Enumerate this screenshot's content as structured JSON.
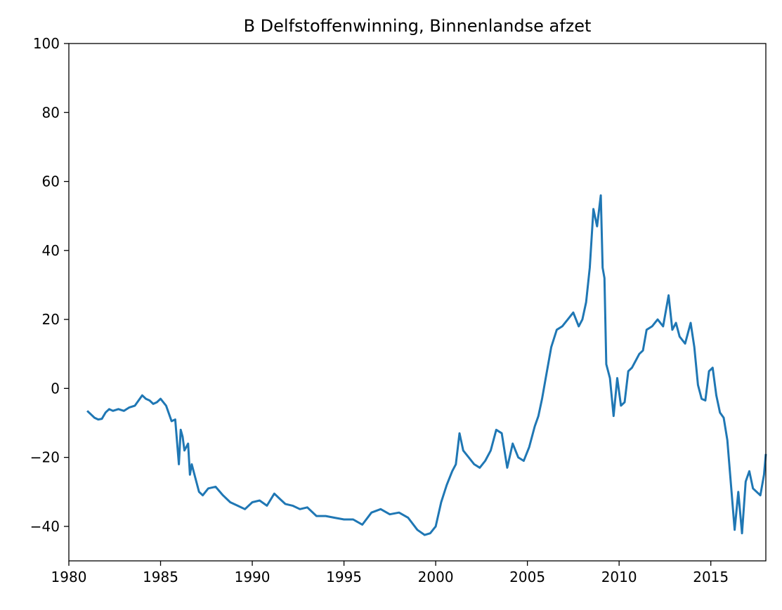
{
  "chart_data": {
    "type": "line",
    "title": "B Delfstoffenwinning, Binnenlandse afzet",
    "xlabel": "",
    "ylabel": "",
    "xlim": [
      1980,
      2018
    ],
    "ylim": [
      -50,
      100
    ],
    "xticks": [
      1980,
      1985,
      1990,
      1995,
      2000,
      2005,
      2010,
      2015
    ],
    "xtick_labels": [
      "1980",
      "1985",
      "1990",
      "1995",
      "2000",
      "2005",
      "2010",
      "2015"
    ],
    "yticks": [
      -40,
      -20,
      0,
      20,
      40,
      60,
      80,
      100
    ],
    "ytick_labels": [
      "−40",
      "−20",
      "0",
      "20",
      "40",
      "60",
      "80",
      "100"
    ],
    "grid": false,
    "line_color": "#1f77b4",
    "series": [
      {
        "x": [
          1981.0,
          1981.2,
          1981.4,
          1981.6,
          1981.8,
          1982.0,
          1982.2,
          1982.4,
          1982.7,
          1983.0,
          1983.3,
          1983.6,
          1984.0,
          1984.2,
          1984.4,
          1984.6,
          1984.8,
          1985.0,
          1985.3,
          1985.6,
          1985.8,
          1986.0,
          1986.1,
          1986.2,
          1986.3,
          1986.5,
          1986.6,
          1986.7,
          1986.9,
          1987.1,
          1987.3,
          1987.6,
          1988.0,
          1988.4,
          1988.8,
          1989.2,
          1989.6,
          1990.0,
          1990.4,
          1990.8,
          1991.2,
          1991.5,
          1991.8,
          1992.2,
          1992.6,
          1993.0,
          1993.5,
          1994.0,
          1994.5,
          1995.0,
          1995.5,
          1996.0,
          1996.5,
          1997.0,
          1997.5,
          1998.0,
          1998.5,
          1999.0,
          1999.4,
          1999.7,
          2000.0,
          2000.3,
          2000.6,
          2000.9,
          2001.1,
          2001.3,
          2001.5,
          2001.8,
          2002.1,
          2002.4,
          2002.7,
          2003.0,
          2003.3,
          2003.6,
          2003.9,
          2004.2,
          2004.5,
          2004.8,
          2005.1,
          2005.4,
          2005.6,
          2005.8,
          2006.0,
          2006.3,
          2006.6,
          2006.9,
          2007.2,
          2007.5,
          2007.8,
          2008.0,
          2008.2,
          2008.4,
          2008.6,
          2008.8,
          2009.0,
          2009.1,
          2009.2,
          2009.3,
          2009.5,
          2009.7,
          2009.9,
          2010.1,
          2010.3,
          2010.5,
          2010.7,
          2010.9,
          2011.1,
          2011.3,
          2011.5,
          2011.8,
          2012.1,
          2012.4,
          2012.7,
          2012.9,
          2013.1,
          2013.3,
          2013.6,
          2013.9,
          2014.1,
          2014.3,
          2014.5,
          2014.7,
          2014.9,
          2015.1,
          2015.3,
          2015.5,
          2015.7,
          2015.9,
          2016.1,
          2016.3,
          2016.5,
          2016.7,
          2016.9,
          2017.1,
          2017.3,
          2017.5,
          2017.7,
          2017.9,
          2018.0
        ],
        "values": [
          -6.5,
          -7.5,
          -8.5,
          -9.0,
          -8.8,
          -7.0,
          -6.0,
          -6.5,
          -6.0,
          -6.5,
          -5.5,
          -5.0,
          -2.0,
          -3.0,
          -3.5,
          -4.5,
          -4.0,
          -3.0,
          -5.0,
          -9.5,
          -9.0,
          -22.0,
          -12.0,
          -14.0,
          -18.0,
          -16.0,
          -25.0,
          -22.0,
          -26.0,
          -30.0,
          -31.0,
          -29.0,
          -28.5,
          -31.0,
          -33.0,
          -34.0,
          -35.0,
          -33.0,
          -32.5,
          -34.0,
          -30.5,
          -32.0,
          -33.5,
          -34.0,
          -35.0,
          -34.5,
          -37.0,
          -37.0,
          -37.5,
          -38.0,
          -38.0,
          -39.5,
          -36.0,
          -35.0,
          -36.5,
          -36.0,
          -37.5,
          -41.0,
          -42.5,
          -42.0,
          -40.0,
          -33.0,
          -28.0,
          -24.0,
          -22.0,
          -13.0,
          -18.0,
          -20.0,
          -22.0,
          -23.0,
          -21.0,
          -18.0,
          -12.0,
          -13.0,
          -23.0,
          -16.0,
          -20.0,
          -21.0,
          -17.0,
          -11.0,
          -8.0,
          -3.0,
          3.0,
          12.0,
          17.0,
          18.0,
          20.0,
          22.0,
          18.0,
          20.0,
          25.0,
          35.0,
          52.0,
          47.0,
          56.0,
          35.0,
          32.0,
          7.0,
          3.0,
          -8.0,
          3.0,
          -5.0,
          -4.0,
          5.0,
          6.0,
          8.0,
          10.0,
          11.0,
          17.0,
          18.0,
          20.0,
          18.0,
          27.0,
          17.0,
          19.0,
          15.0,
          13.0,
          19.0,
          12.0,
          1.0,
          -3.0,
          -3.5,
          5.0,
          6.0,
          -2.0,
          -7.0,
          -8.5,
          -15.0,
          -28.0,
          -41.0,
          -30.0,
          -42.0,
          -27.0,
          -24.0,
          -29.0,
          -30.0,
          -31.0,
          -25.0,
          -19.0
        ]
      }
    ]
  }
}
